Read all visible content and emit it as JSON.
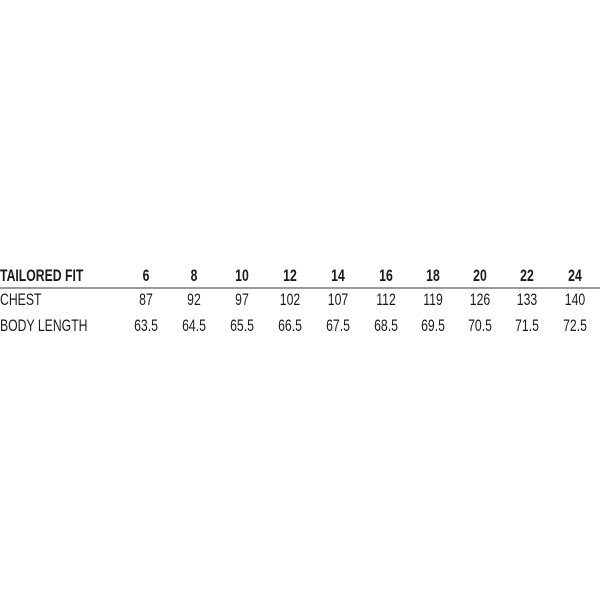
{
  "table": {
    "header": {
      "label": "TAILORED FIT",
      "sizes": [
        "6",
        "8",
        "10",
        "12",
        "14",
        "16",
        "18",
        "20",
        "22",
        "24"
      ]
    },
    "rows": [
      {
        "label": "CHEST",
        "values": [
          "87",
          "92",
          "97",
          "102",
          "107",
          "112",
          "119",
          "126",
          "133",
          "140"
        ]
      },
      {
        "label": "BODY LENGTH",
        "values": [
          "63.5",
          "64.5",
          "65.5",
          "66.5",
          "67.5",
          "68.5",
          "69.5",
          "70.5",
          "71.5",
          "72.5"
        ]
      }
    ]
  }
}
